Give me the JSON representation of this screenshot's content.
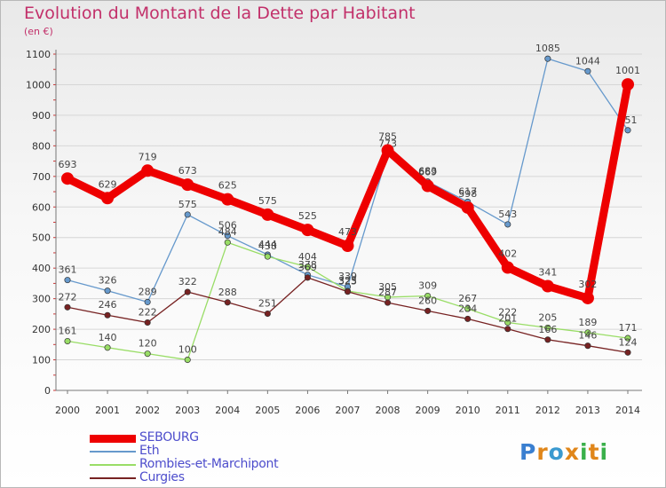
{
  "title": "Evolution du Montant de la Dette par Habitant",
  "subtitle": "(en €)",
  "chart_data": {
    "type": "line",
    "x": [
      "2000",
      "2001",
      "2002",
      "2003",
      "2004",
      "2005",
      "2006",
      "2007",
      "2008",
      "2009",
      "2010",
      "2011",
      "2012",
      "2013",
      "2014"
    ],
    "ylim": [
      0,
      1100
    ],
    "yticks": [
      0,
      100,
      200,
      300,
      400,
      500,
      600,
      700,
      800,
      900,
      1000,
      1100
    ],
    "grid": true,
    "legend_position": "bottom-left",
    "series": [
      {
        "name": "SEBOURG",
        "color": "#ee0000",
        "values": [
          693,
          629,
          719,
          673,
          625,
          575,
          525,
          473,
          785,
          669,
          598,
          402,
          341,
          302,
          1001
        ]
      },
      {
        "name": "Eth",
        "color": "#6699cc",
        "values": [
          361,
          326,
          289,
          575,
          506,
          444,
          378,
          339,
          773,
          683,
          617,
          543,
          1085,
          1044,
          851
        ]
      },
      {
        "name": "Rombies-et-Marchipont",
        "color": "#99dd66",
        "values": [
          161,
          140,
          120,
          100,
          484,
          438,
          404,
          325,
          305,
          309,
          267,
          222,
          205,
          189,
          171
        ]
      },
      {
        "name": "Curgies",
        "color": "#772222",
        "values": [
          272,
          246,
          222,
          322,
          288,
          251,
          369,
          323,
          287,
          260,
          234,
          201,
          166,
          146,
          124
        ]
      }
    ]
  },
  "logo": {
    "text": "Proxiti",
    "letters": [
      "P",
      "r",
      "o",
      "x",
      "i",
      "t",
      "i"
    ],
    "colors": [
      "#3a7fd0",
      "#e0861a",
      "#3a9ad0",
      "#e0861a",
      "#3ab04a",
      "#e0861a",
      "#3ab04a"
    ]
  }
}
